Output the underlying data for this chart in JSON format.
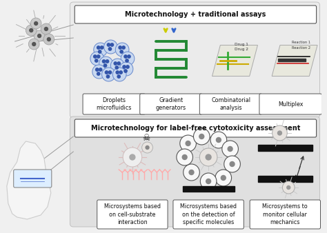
{
  "bg_color": "#f0f0f0",
  "top_panel_bg": "#ebebeb",
  "bot_panel_bg": "#e0e0e0",
  "white": "#ffffff",
  "title1": "Microtechnology + traditional assays",
  "title2": "Microtechnology for label-free cytotoxicity assessment",
  "top_labels": [
    "Droplets\nmicrofluidics",
    "Gradient\ngenerators",
    "Combinatorial\nanalysis",
    "Multiplex"
  ],
  "bottom_labels": [
    "Microsystems based\non cell-substrate\ninteraction",
    "Microsystems based\non the detection of\nspecific molecules",
    "Microsystems to\nmonitor cellular\nmechanics"
  ],
  "font_title": 7.0,
  "font_label": 5.8,
  "font_small": 4.2
}
